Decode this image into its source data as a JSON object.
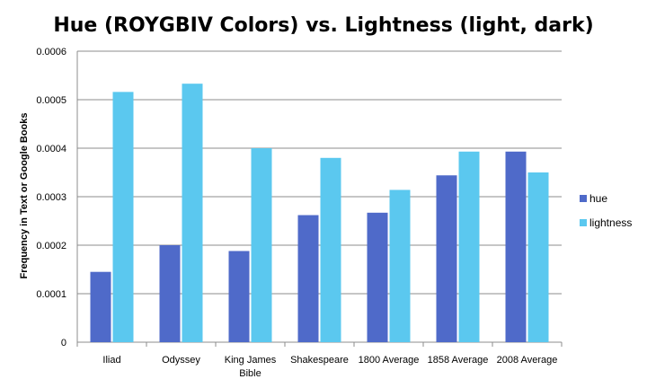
{
  "chart_data": {
    "type": "bar",
    "title": "Hue (ROYGBIV Colors) vs. Lightness (light, dark)",
    "xlabel": "",
    "ylabel": "Frequency in Text or Google Books",
    "ylim": [
      0,
      0.0006
    ],
    "yticks": [
      "0",
      "0.0001",
      "0.0002",
      "0.0003",
      "0.0004",
      "0.0005",
      "0.0006"
    ],
    "categories": [
      [
        "Iliad"
      ],
      [
        "Odyssey"
      ],
      [
        "King James",
        "Bible"
      ],
      [
        "Shakespeare"
      ],
      [
        "1800 Average"
      ],
      [
        "1858 Average"
      ],
      [
        "2008 Average"
      ]
    ],
    "series": [
      {
        "name": "hue",
        "color": "#4f6ac9",
        "values": [
          0.000145,
          0.0002,
          0.000188,
          0.000262,
          0.000267,
          0.000344,
          0.000393
        ]
      },
      {
        "name": "lightness",
        "color": "#5bc8ef",
        "values": [
          0.000516,
          0.000533,
          0.0004,
          0.00038,
          0.000314,
          0.000393,
          0.00035
        ]
      }
    ],
    "grid": true,
    "legend_position": "right"
  }
}
